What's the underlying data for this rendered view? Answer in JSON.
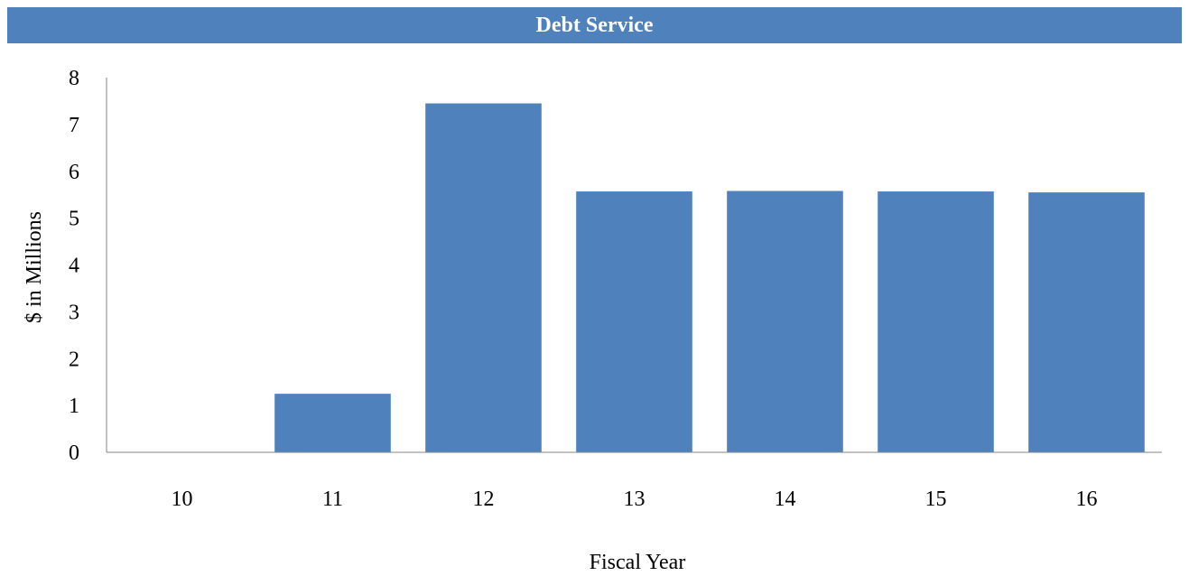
{
  "chart_data": {
    "type": "bar",
    "title": "Debt Service",
    "xlabel": "Fiscal Year",
    "ylabel": "$ in Millions",
    "categories": [
      "10",
      "11",
      "12",
      "13",
      "14",
      "15",
      "16"
    ],
    "values": [
      0,
      1.25,
      7.45,
      5.57,
      5.58,
      5.57,
      5.55
    ],
    "ylim": [
      0,
      8
    ],
    "yticks": [
      "0",
      "1",
      "2",
      "3",
      "4",
      "5",
      "6",
      "7",
      "8"
    ],
    "grid": false,
    "legend": "none",
    "bar_color": "#4f81bd",
    "title_background": "#4f81bd"
  }
}
